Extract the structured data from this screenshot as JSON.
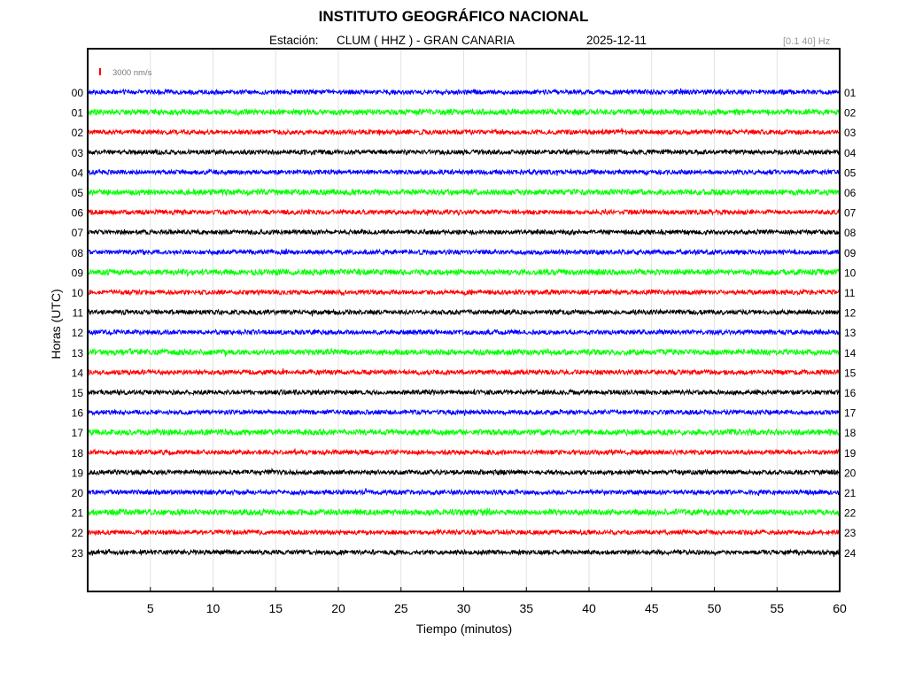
{
  "title": "INSTITUTO GEOGRÁFICO NACIONAL",
  "station_label": "Estación:",
  "station": "CLUM ( HHZ ) - GRAN CANARIA",
  "date": "2025-12-11",
  "filter": "[0.1 40] Hz",
  "chart_data": {
    "type": "line",
    "title": "INSTITUTO GEOGRÁFICO NACIONAL",
    "xlabel": "Tiempo (minutos)",
    "ylabel": "Horas (UTC)",
    "xlim": [
      0,
      60
    ],
    "x_ticks": [
      5,
      10,
      15,
      20,
      25,
      30,
      35,
      40,
      45,
      50,
      55,
      60
    ],
    "left_labels": [
      "00",
      "01",
      "02",
      "03",
      "04",
      "05",
      "06",
      "07",
      "08",
      "09",
      "10",
      "11",
      "12",
      "13",
      "14",
      "15",
      "16",
      "17",
      "18",
      "19",
      "20",
      "21",
      "22",
      "23"
    ],
    "right_labels": [
      "01",
      "02",
      "03",
      "04",
      "05",
      "06",
      "07",
      "08",
      "09",
      "10",
      "11",
      "12",
      "13",
      "14",
      "15",
      "16",
      "17",
      "18",
      "19",
      "20",
      "21",
      "22",
      "23",
      "24"
    ],
    "trace_colors": [
      "#0000ff",
      "#00ff00",
      "#ff0000",
      "#000000"
    ],
    "scale_label": "3000 nm/s",
    "scale_color": "#ff0000",
    "grid": true
  }
}
